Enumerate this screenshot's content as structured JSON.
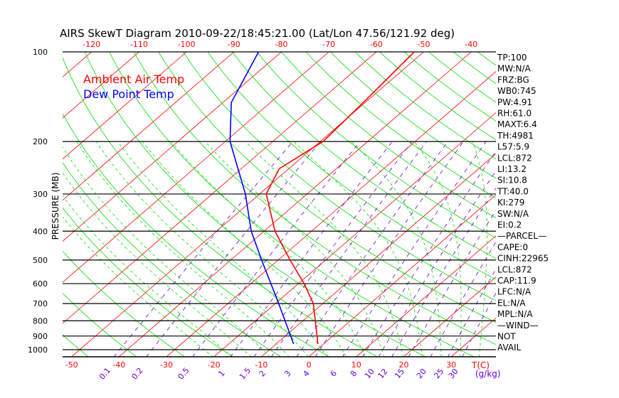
{
  "chart_data": {
    "type": "line",
    "subtype": "skew-t log-p",
    "title": "AIRS SkewT Diagram 2010-09-22/18:45:21.00 (Lat/Lon 47.56/121.92 deg)",
    "ylabel": "PRESSURE (MB)",
    "xlabel": "T(C)",
    "mixing_ratio_label": "(g/kg)",
    "ylim": [
      1056,
      100
    ],
    "pressure_ticks": [
      100,
      200,
      300,
      400,
      500,
      600,
      700,
      800,
      900,
      1000
    ],
    "top_temp_ticks": [
      -120,
      -110,
      -100,
      -90,
      -80,
      -70,
      -60,
      -50,
      -40
    ],
    "bottom_temp_ticks": [
      -50,
      -40,
      -30,
      -20,
      -10,
      0,
      10,
      20,
      30
    ],
    "mixing_ratio_ticks": [
      "0.1",
      "0.2",
      "0.5",
      "1",
      "1.5",
      "2",
      "3",
      "4",
      "6",
      "8",
      "10",
      "12",
      "15",
      "20",
      "25",
      "30"
    ],
    "legend": [
      {
        "name": "Ambient Air Temp",
        "color": "#ff0000"
      },
      {
        "name": "Dew Point Temp",
        "color": "#0000ff"
      }
    ],
    "series": [
      {
        "name": "Ambient Air Temp",
        "color": "#ff0000",
        "pressure": [
          957,
          700,
          600,
          500,
          400,
          300,
          247,
          200,
          148,
          100
        ],
        "temperature": [
          -1.2,
          -12.0,
          -18.8,
          -27.5,
          -37.7,
          -48.6,
          -52.0,
          -49.4,
          -50.4,
          -52.0
        ]
      },
      {
        "name": "Dew Point Temp",
        "color": "#0000ff",
        "pressure": [
          957,
          700,
          500,
          400,
          300,
          200,
          148,
          100
        ],
        "temperature": [
          -6.3,
          -19.3,
          -33.5,
          -42.7,
          -53.0,
          -69.0,
          -78.2,
          -84.8
        ]
      }
    ],
    "colors": {
      "isotherm": "#ff0000",
      "dry_adiabat": "#00dd00",
      "moist_adiabat": "#00dd00",
      "mixing_ratio": "#6600cc",
      "isobar": "#000000"
    }
  },
  "indices": [
    "TP:100",
    "MW:N/A",
    "FRZ:BG",
    "WB0:745",
    "PW:4.91",
    "RH:61.0",
    "MAXT:6.4",
    "TH:4981",
    "L57:5.9",
    "LCL:872",
    "LI:13.2",
    "SI:10.8",
    "TT:40.0",
    "KI:279",
    "SW:N/A",
    " EI:0.2",
    "—PARCEL—",
    "CAPE:0",
    "CINH:22965",
    "LCL:872",
    "CAP:11.9",
    "LFC:N/A",
    "EL:N/A",
    "MPL:N/A",
    "—WIND—",
    " NOT",
    " AVAIL"
  ]
}
